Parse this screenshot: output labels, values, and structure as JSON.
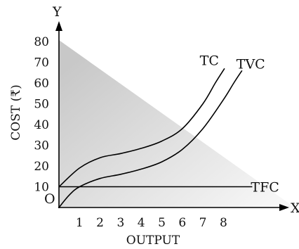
{
  "chart_data": {
    "type": "line",
    "title": "",
    "xlabel": "OUTPUT",
    "ylabel": "COST (₹)",
    "x_axis_letter": "X",
    "y_axis_letter": "Y",
    "origin_label": "O",
    "x_ticks": [
      "1",
      "2",
      "3",
      "4",
      "5",
      "6",
      "7",
      "8"
    ],
    "y_ticks": [
      "10",
      "20",
      "30",
      "40",
      "50",
      "60",
      "70",
      "80"
    ],
    "xlim": [
      0,
      10.5
    ],
    "ylim": [
      0,
      86
    ],
    "grid": false,
    "legend": "none",
    "series": [
      {
        "name": "TC",
        "color": "#000000",
        "points": [
          [
            0,
            10
          ],
          [
            1,
            19
          ],
          [
            2,
            24
          ],
          [
            3,
            26
          ],
          [
            4,
            28.5
          ],
          [
            5,
            32
          ],
          [
            6,
            38
          ],
          [
            7,
            50
          ],
          [
            7.6,
            60
          ],
          [
            8.05,
            67
          ]
        ]
      },
      {
        "name": "TVC",
        "color": "#000000",
        "points": [
          [
            0,
            0
          ],
          [
            0.5,
            6
          ],
          [
            1,
            10
          ],
          [
            2,
            14
          ],
          [
            3,
            16
          ],
          [
            4,
            18.5
          ],
          [
            5,
            22
          ],
          [
            6,
            28
          ],
          [
            7,
            38
          ],
          [
            8,
            52
          ],
          [
            8.5,
            60
          ],
          [
            8.9,
            66
          ]
        ]
      },
      {
        "name": "TFC",
        "color": "#000000",
        "points": [
          [
            0,
            10
          ],
          [
            9.4,
            10
          ]
        ]
      }
    ],
    "background_triangle_color": "#bdbdbd"
  }
}
